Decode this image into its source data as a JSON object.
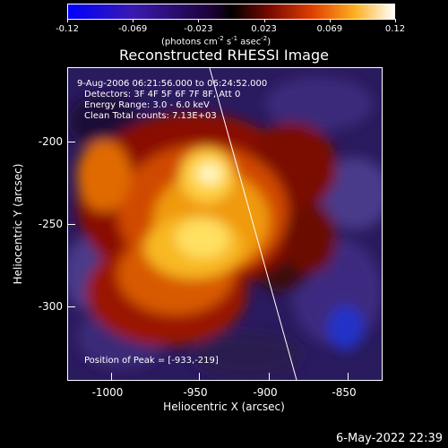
{
  "colorbar": {
    "ticks": [
      "-0.12",
      "-0.069",
      "-0.023",
      "0.023",
      "0.069",
      "0.12"
    ],
    "units_html": "(photons cm<sup>-2</sup> s<sup>-1</sup> asec<sup>-2</sup>)"
  },
  "title": "Reconstructed RHESSI Image",
  "info": {
    "time_range": "9-Aug-2006 06:21:56.000 to 06:24:52.000",
    "detectors": "Detectors: 3F 4F 5F 6F 7F 8F, Att 0",
    "energy": "Energy Range: 3.0 - 6.0 keV",
    "algorithm": "Clean    Total counts: 7.13E+03",
    "peak": "Position of Peak = [-933,-219]"
  },
  "axes": {
    "xlabel": "Heliocentric X (arcsec)",
    "ylabel": "Heliocentric Y (arcsec)",
    "xticks": [
      "-1000",
      "-950",
      "-900",
      "-850"
    ],
    "yticks": [
      "-200",
      "-250",
      "-300"
    ]
  },
  "footer": "6-May-2022 22:39",
  "colors": {
    "negative_end": "#0000ff",
    "zero": "#000000",
    "positive_end": "#ffffff",
    "limb_line": "#ffffff"
  }
}
